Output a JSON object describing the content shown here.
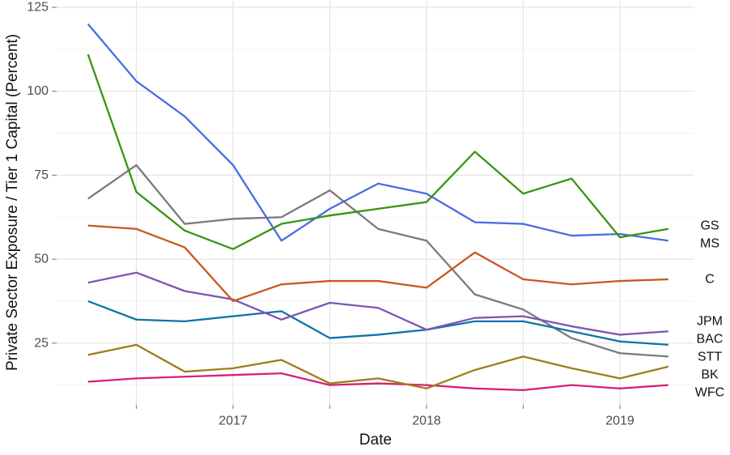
{
  "chart_data": {
    "type": "line",
    "title": "",
    "xlabel": "Date",
    "ylabel": "Private Sector Exposure / Tier 1 Capital (Percent)",
    "x": [
      2016.25,
      2016.5,
      2016.75,
      2017.0,
      2017.25,
      2017.5,
      2017.75,
      2018.0,
      2018.25,
      2018.5,
      2018.75,
      2019.0,
      2019.25
    ],
    "x_unit": "year (quarterly points)",
    "series": [
      {
        "name": "GS",
        "color": "#38940F",
        "values": [
          111,
          70,
          58.5,
          53,
          60.5,
          63,
          65,
          67,
          82,
          69.5,
          74,
          56.5,
          59
        ]
      },
      {
        "name": "MS",
        "color": "#4A6CE3",
        "values": [
          120,
          103,
          92.5,
          78,
          55.5,
          65,
          72.5,
          69.5,
          61,
          60.5,
          57,
          57.5,
          55.5
        ]
      },
      {
        "name": "C",
        "color": "#C9571E",
        "values": [
          60,
          59,
          53.5,
          37.5,
          42.5,
          43.5,
          43.5,
          41.5,
          52,
          44,
          42.5,
          43.5,
          44
        ]
      },
      {
        "name": "JPM",
        "color": "#7D55B4",
        "values": [
          43,
          46,
          40.5,
          38,
          32,
          37,
          35.5,
          29,
          32.5,
          33,
          30,
          27.5,
          28.5
        ]
      },
      {
        "name": "BAC",
        "color": "#0D74A8",
        "values": [
          37.5,
          32,
          31.5,
          33,
          34.5,
          26.5,
          27.5,
          29,
          31.5,
          31.5,
          28.5,
          25.5,
          24.5
        ]
      },
      {
        "name": "STT",
        "color": "#7A7A7A",
        "values": [
          68,
          78,
          60.5,
          62,
          62.5,
          70.5,
          59,
          55.5,
          39.5,
          35,
          26.5,
          22,
          21
        ]
      },
      {
        "name": "BK",
        "color": "#A07D1C",
        "values": [
          21.5,
          24.5,
          16.5,
          17.5,
          20,
          13,
          14.5,
          11.5,
          17,
          21,
          17.5,
          14.5,
          18
        ]
      },
      {
        "name": "WFC",
        "color": "#D91E78",
        "values": [
          13.5,
          14.5,
          15,
          15.5,
          16,
          12.5,
          13,
          12.5,
          11.5,
          11,
          12.5,
          11.5,
          12.5
        ]
      }
    ],
    "x_axis": {
      "breaks": [
        {
          "pos": 2016.5,
          "label": ""
        },
        {
          "pos": 2017.0,
          "label": "2017"
        },
        {
          "pos": 2017.5,
          "label": ""
        },
        {
          "pos": 2018.0,
          "label": "2018"
        },
        {
          "pos": 2018.5,
          "label": ""
        },
        {
          "pos": 2019.0,
          "label": "2019"
        }
      ]
    },
    "y_axis": {
      "major_breaks": [
        {
          "value": 25,
          "label": "25"
        },
        {
          "value": 50,
          "label": "50"
        },
        {
          "value": 75,
          "label": "75"
        },
        {
          "value": 100,
          "label": "100"
        },
        {
          "value": 125,
          "label": "125"
        }
      ],
      "minor_breaks": [
        12.5,
        37.5,
        62.5,
        87.5,
        112.5
      ]
    },
    "grid": true,
    "legend_position": "direct-labels-right",
    "colors": {
      "grid_major": "#E4E4E4",
      "grid_minor": "#EFEFEF",
      "tick": "#8C8C8C",
      "tick_label": "#4D4D4D",
      "label_text": "#111111"
    }
  }
}
